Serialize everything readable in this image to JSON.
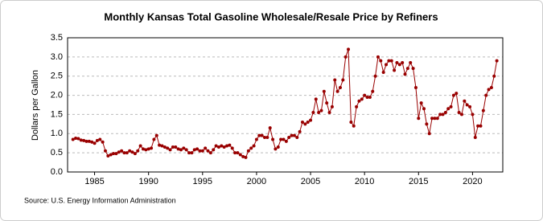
{
  "chart_data": {
    "type": "line",
    "title": "Monthly Kansas Total Gasoline Wholesale/Resale Price by Refiners",
    "y_label": "Dollars per Gallon",
    "source": "Source: U.S. Energy Information Administration",
    "x": [
      1983,
      1983.25,
      1983.5,
      1983.75,
      1984,
      1984.25,
      1984.5,
      1984.75,
      1985,
      1985.25,
      1985.5,
      1985.75,
      1986,
      1986.25,
      1986.5,
      1986.75,
      1987,
      1987.25,
      1987.5,
      1987.75,
      1988,
      1988.25,
      1988.5,
      1988.75,
      1989,
      1989.25,
      1989.5,
      1989.75,
      1990,
      1990.25,
      1990.5,
      1990.75,
      1991,
      1991.25,
      1991.5,
      1991.75,
      1992,
      1992.25,
      1992.5,
      1992.75,
      1993,
      1993.25,
      1993.5,
      1993.75,
      1994,
      1994.25,
      1994.5,
      1994.75,
      1995,
      1995.25,
      1995.5,
      1995.75,
      1996,
      1996.25,
      1996.5,
      1996.75,
      1997,
      1997.25,
      1997.5,
      1997.75,
      1998,
      1998.25,
      1998.5,
      1998.75,
      1999,
      1999.25,
      1999.5,
      1999.75,
      2000,
      2000.25,
      2000.5,
      2000.75,
      2001,
      2001.25,
      2001.5,
      2001.75,
      2002,
      2002.25,
      2002.5,
      2002.75,
      2003,
      2003.25,
      2003.5,
      2003.75,
      2004,
      2004.25,
      2004.5,
      2004.75,
      2005,
      2005.25,
      2005.5,
      2005.75,
      2006,
      2006.25,
      2006.5,
      2006.75,
      2007,
      2007.25,
      2007.5,
      2007.75,
      2008,
      2008.25,
      2008.5,
      2008.75,
      2009,
      2009.25,
      2009.5,
      2009.75,
      2010,
      2010.25,
      2010.5,
      2010.75,
      2011,
      2011.25,
      2011.5,
      2011.75,
      2012,
      2012.25,
      2012.5,
      2012.75,
      2013,
      2013.25,
      2013.5,
      2013.75,
      2014,
      2014.25,
      2014.5,
      2014.75,
      2015,
      2015.25,
      2015.5,
      2015.75,
      2016,
      2016.25,
      2016.5,
      2016.75,
      2017,
      2017.25,
      2017.5,
      2017.75,
      2018,
      2018.25,
      2018.5,
      2018.75,
      2019,
      2019.25,
      2019.5,
      2019.75,
      2020,
      2020.25,
      2020.5,
      2020.75,
      2021,
      2021.25,
      2021.5,
      2021.75,
      2022,
      2022.25
    ],
    "series": [
      {
        "color": "#990000",
        "values": [
          0.85,
          0.88,
          0.87,
          0.83,
          0.82,
          0.8,
          0.8,
          0.78,
          0.75,
          0.82,
          0.85,
          0.78,
          0.55,
          0.42,
          0.45,
          0.48,
          0.48,
          0.52,
          0.55,
          0.5,
          0.5,
          0.55,
          0.52,
          0.48,
          0.55,
          0.68,
          0.6,
          0.58,
          0.6,
          0.62,
          0.85,
          0.95,
          0.7,
          0.68,
          0.65,
          0.62,
          0.58,
          0.65,
          0.65,
          0.6,
          0.58,
          0.62,
          0.58,
          0.5,
          0.5,
          0.58,
          0.6,
          0.55,
          0.55,
          0.62,
          0.55,
          0.5,
          0.58,
          0.68,
          0.65,
          0.68,
          0.65,
          0.68,
          0.7,
          0.62,
          0.5,
          0.5,
          0.45,
          0.4,
          0.38,
          0.55,
          0.62,
          0.68,
          0.85,
          0.95,
          0.95,
          0.9,
          0.9,
          1.15,
          0.85,
          0.6,
          0.65,
          0.85,
          0.85,
          0.8,
          0.9,
          0.95,
          0.95,
          0.9,
          1.05,
          1.3,
          1.25,
          1.3,
          1.35,
          1.55,
          1.9,
          1.55,
          1.6,
          2.1,
          1.8,
          1.55,
          1.7,
          2.4,
          2.1,
          2.2,
          2.4,
          3.0,
          3.2,
          1.3,
          1.2,
          1.7,
          1.85,
          1.9,
          2.0,
          1.95,
          1.95,
          2.1,
          2.5,
          3.0,
          2.9,
          2.6,
          2.8,
          2.9,
          2.9,
          2.65,
          2.85,
          2.8,
          2.85,
          2.55,
          2.7,
          2.85,
          2.7,
          2.2,
          1.4,
          1.8,
          1.65,
          1.25,
          1.0,
          1.4,
          1.4,
          1.4,
          1.5,
          1.5,
          1.55,
          1.65,
          1.7,
          2.0,
          2.05,
          1.55,
          1.5,
          1.85,
          1.75,
          1.7,
          1.5,
          0.9,
          1.2,
          1.2,
          1.6,
          2.0,
          2.15,
          2.2,
          2.5,
          2.9
        ]
      }
    ],
    "xlim": [
      1982.5,
      2022.8
    ],
    "ylim": [
      0,
      3.5
    ],
    "xticks": [
      1985,
      1990,
      1995,
      2000,
      2005,
      2010,
      2015,
      2020
    ],
    "yticks": [
      {
        "value": 0,
        "label": "0.0"
      },
      {
        "value": 0.5,
        "label": "0.5"
      },
      {
        "value": 1,
        "label": "1.0"
      },
      {
        "value": 1.5,
        "label": "1.5"
      },
      {
        "value": 2,
        "label": "2.0"
      },
      {
        "value": 2.5,
        "label": "2.5"
      },
      {
        "value": 3,
        "label": "3.0"
      },
      {
        "value": 3.5,
        "label": "3.5"
      }
    ],
    "grid": true
  }
}
